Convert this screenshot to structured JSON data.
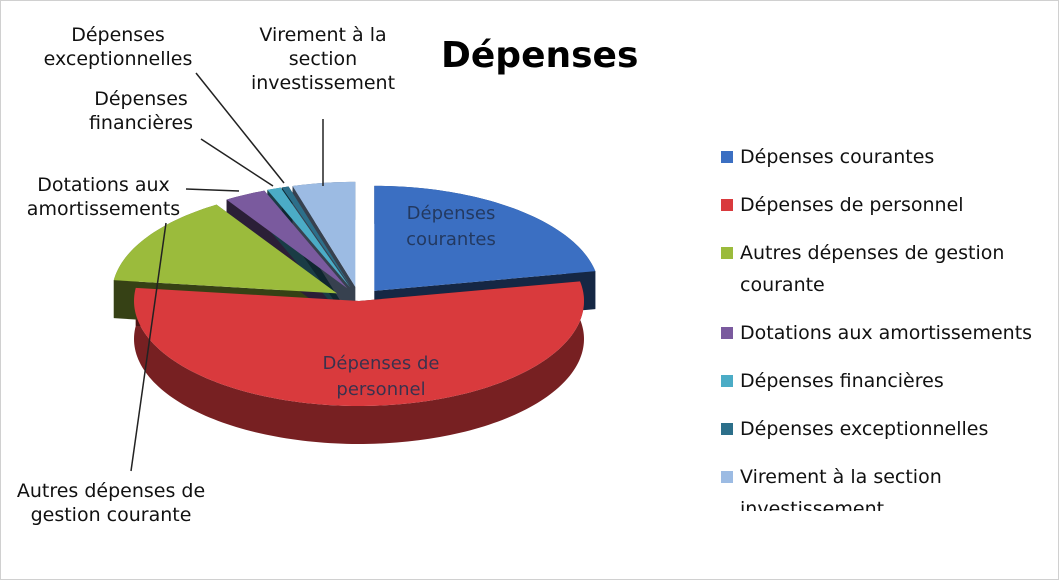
{
  "chart_data": {
    "type": "pie3d",
    "title": "Dépenses",
    "categories": [
      "Dépenses courantes",
      "Dépenses de personnel",
      "Autres dépenses de gestion courante",
      "Dotations aux amortissements",
      "Dépenses financières",
      "Dépenses exceptionnelles",
      "Virement à la section investissement"
    ],
    "values": [
      22,
      55,
      14,
      3,
      1,
      0.5,
      4.5
    ],
    "colors": [
      "#3b6fc2",
      "#d93a3d",
      "#9bbb3c",
      "#7a5a9e",
      "#4bacc6",
      "#2c6f8a",
      "#9cbbe3"
    ],
    "legend": "right"
  }
}
